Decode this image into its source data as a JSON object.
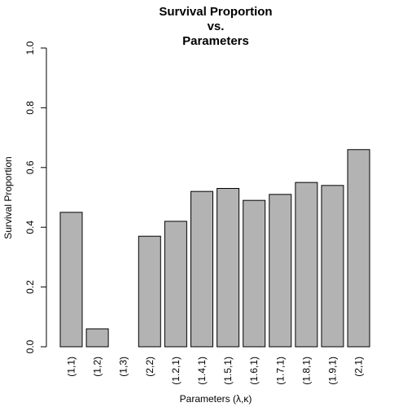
{
  "chart_data": {
    "type": "bar",
    "title_lines": [
      "Survival Proportion",
      "vs.",
      "Parameters"
    ],
    "xlabel": "Parameters (λ,κ)",
    "ylabel": "Survival Proportion",
    "categories": [
      "(1,1)",
      "(1,2)",
      "(1,3)",
      "(2,2)",
      "(1.2,1)",
      "(1.4,1)",
      "(1.5,1)",
      "(1.6,1)",
      "(1.7,1)",
      "(1.8,1)",
      "(1.9,1)",
      "(2,1)"
    ],
    "values": [
      0.45,
      0.06,
      0.0,
      0.37,
      0.42,
      0.52,
      0.53,
      0.49,
      0.51,
      0.55,
      0.54,
      0.66
    ],
    "ylim": [
      0,
      1
    ],
    "yticks": [
      0,
      0.2,
      0.4,
      0.6,
      0.8,
      1
    ],
    "ytick_labels": [
      "0.0",
      "0.2",
      "0.4",
      "0.6",
      "0.8",
      "1.0"
    ],
    "grid": false,
    "bar_color": "#b3b3b3",
    "bar_edge_color": "#000000"
  }
}
